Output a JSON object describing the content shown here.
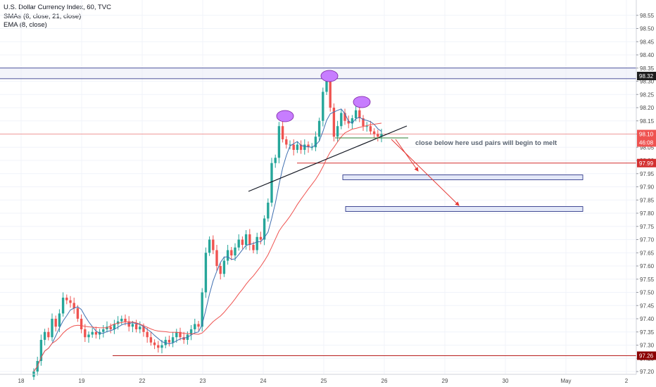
{
  "legend": {
    "title": "U.S. Dollar Currency Index, 60, TVC",
    "sma": "SMAs (6, close, 21, close)",
    "ema": "EMA (8, close)"
  },
  "chart_data": {
    "type": "candlestick",
    "title": "U.S. Dollar Currency Index, 60, TVC",
    "ylim": [
      97.18,
      98.58
    ],
    "y_ticks": [
      "98.55",
      "98.50",
      "98.45",
      "98.40",
      "98.35",
      "98.30",
      "98.25",
      "98.20",
      "98.15",
      "98.10",
      "98.05",
      "98.00",
      "97.95",
      "97.90",
      "97.85",
      "97.80",
      "97.75",
      "97.70",
      "97.65",
      "97.60",
      "97.55",
      "97.50",
      "97.45",
      "97.40",
      "97.35",
      "97.30",
      "97.25",
      "97.20"
    ],
    "x_ticks": [
      "18",
      "19",
      "22",
      "23",
      "24",
      "25",
      "26",
      "29",
      "30",
      "May",
      "2"
    ],
    "price_tags": [
      {
        "label": "98.32",
        "value": 98.32,
        "color": "#1e1e1e"
      },
      {
        "label": "98.10",
        "value": 98.1,
        "color": "#ef5350"
      },
      {
        "label": "46:08",
        "value": 98.09,
        "color": "#ef5350"
      },
      {
        "label": "97.99",
        "value": 97.99,
        "color": "#d32f2f"
      },
      {
        "label": "97.26",
        "value": 97.26,
        "color": "#8b0000"
      }
    ],
    "horizontal_lines": [
      {
        "value": 98.35,
        "color": "#1a237e"
      },
      {
        "value": 98.31,
        "color": "#1a237e"
      },
      {
        "value": 98.1,
        "color": "#ef9a9a"
      },
      {
        "value": 97.99,
        "color": "#d32f2f"
      },
      {
        "value": 97.26,
        "color": "#b71c1c"
      }
    ],
    "annotation": "close below here usd pairs will begin to melt",
    "target_zones": [
      {
        "low": 97.93,
        "high": 97.94
      },
      {
        "low": 97.81,
        "high": 97.82
      }
    ],
    "colors": {
      "up": "#26a69a",
      "down": "#ef5350",
      "sma_fast": "#3f6fb0",
      "sma_slow": "#ef5350",
      "trendline": "#131722",
      "zone": "#1a237e",
      "peak": "#c77dff"
    },
    "series": [
      {
        "name": "price",
        "x_range": [
          "18",
          "26"
        ],
        "closes": [
          97.2,
          97.24,
          97.32,
          97.35,
          97.33,
          97.4,
          97.37,
          97.42,
          97.48,
          97.47,
          97.46,
          97.44,
          97.4,
          97.36,
          97.33,
          97.34,
          97.35,
          97.34,
          97.35,
          97.36,
          97.37,
          97.36,
          97.38,
          97.39,
          97.4,
          97.39,
          97.37,
          97.38,
          97.36,
          97.37,
          97.35,
          97.33,
          97.31,
          97.3,
          97.29,
          97.3,
          97.32,
          97.31,
          97.33,
          97.35,
          97.33,
          97.32,
          97.34,
          97.36,
          97.38,
          97.37,
          97.5,
          97.65,
          97.7,
          97.66,
          97.6,
          97.57,
          97.62,
          97.66,
          97.64,
          97.67,
          97.7,
          97.68,
          97.72,
          97.68,
          97.66,
          97.71,
          97.7,
          97.78,
          97.84,
          97.99,
          98.01,
          98.13,
          98.08,
          98.06,
          98.06,
          98.04,
          98.06,
          98.04,
          98.06,
          98.05,
          98.05,
          98.09,
          98.15,
          98.26,
          98.31,
          98.2,
          98.09,
          98.13,
          98.18,
          98.15,
          98.14,
          98.16,
          98.19,
          98.16,
          98.13,
          98.13,
          98.11,
          98.1,
          98.09,
          98.1
        ]
      }
    ]
  }
}
